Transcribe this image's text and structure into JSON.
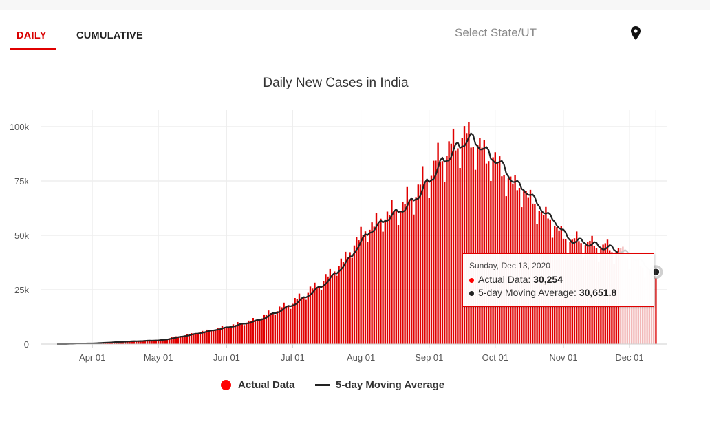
{
  "tabs": [
    {
      "label": "DAILY",
      "active": true
    },
    {
      "label": "CUMULATIVE",
      "active": false
    }
  ],
  "state_select": {
    "placeholder": "Select State/UT",
    "icon": "map-pin-icon"
  },
  "tooltip": {
    "date": "Sunday, Dec 13, 2020",
    "actual_label": "Actual Data: ",
    "actual_value": "30,254",
    "ma_label": "5-day Moving Average: ",
    "ma_value": "30,651.8"
  },
  "legend": {
    "actual": "Actual Data",
    "moving_average": "5-day Moving Average"
  },
  "colors": {
    "bar": "#e00000",
    "moving_average": "#222222",
    "accent": "#d90000",
    "faded_line": "#c9c9c9"
  },
  "chart_data": {
    "type": "bar",
    "title": "Daily New Cases in India",
    "xlabel": "",
    "ylabel": "",
    "ylim": [
      0,
      110000
    ],
    "y_ticks": [
      0,
      25000,
      50000,
      75000,
      100000
    ],
    "y_tick_labels": [
      "0",
      "25k",
      "50k",
      "75k",
      "100k"
    ],
    "x_tick_labels": [
      "Apr 01",
      "May 01",
      "Jun 01",
      "Jul 01",
      "Aug 01",
      "Sep 01",
      "Oct 01",
      "Nov 01",
      "Dec 01"
    ],
    "x_tick_day_index": [
      16,
      46,
      77,
      107,
      138,
      169,
      199,
      230,
      260
    ],
    "start_date": "2020-03-16",
    "end_date": "2020-12-13",
    "highlight_day_index": 272,
    "faded_after_day_index": 255,
    "anchors": [
      [
        0,
        0
      ],
      [
        16,
        400
      ],
      [
        30,
        1200
      ],
      [
        46,
        1800
      ],
      [
        60,
        4500
      ],
      [
        77,
        8000
      ],
      [
        90,
        11000
      ],
      [
        107,
        19000
      ],
      [
        120,
        28000
      ],
      [
        130,
        38000
      ],
      [
        138,
        50000
      ],
      [
        148,
        58000
      ],
      [
        158,
        64000
      ],
      [
        165,
        72000
      ],
      [
        169,
        78000
      ],
      [
        175,
        86000
      ],
      [
        180,
        90000
      ],
      [
        184,
        95000
      ],
      [
        189,
        93000
      ],
      [
        195,
        86000
      ],
      [
        199,
        84000
      ],
      [
        205,
        75000
      ],
      [
        212,
        70000
      ],
      [
        220,
        60000
      ],
      [
        226,
        55000
      ],
      [
        230,
        48000
      ],
      [
        237,
        47000
      ],
      [
        244,
        45000
      ],
      [
        250,
        44000
      ],
      [
        256,
        42000
      ],
      [
        260,
        40000
      ],
      [
        266,
        36000
      ],
      [
        272,
        30254
      ]
    ]
  }
}
